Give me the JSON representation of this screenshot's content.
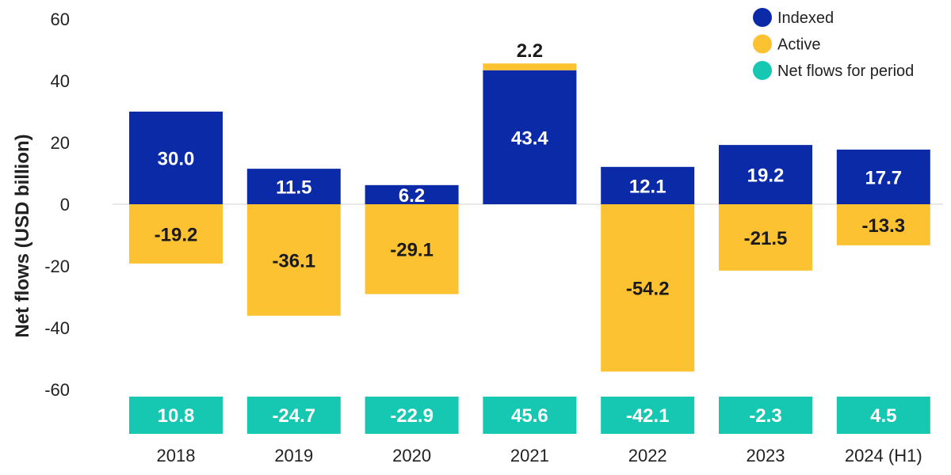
{
  "chart_data": {
    "type": "bar",
    "stacked": true,
    "categories": [
      "2018",
      "2019",
      "2020",
      "2021",
      "2022",
      "2023",
      "2024 (H1)"
    ],
    "series": [
      {
        "name": "Indexed",
        "values": [
          30.0,
          11.5,
          6.2,
          43.4,
          12.1,
          19.2,
          17.7
        ],
        "color": "#0a2aa8",
        "label_color": "#ffffff"
      },
      {
        "name": "Active",
        "values": [
          -19.2,
          -36.1,
          -29.1,
          2.2,
          -54.2,
          -21.5,
          -13.3
        ],
        "color": "#fdc232",
        "label_color": "#1a1a1a"
      }
    ],
    "net_flows": {
      "name": "Net flows for period",
      "values": [
        10.8,
        -24.7,
        -22.9,
        45.6,
        -42.1,
        -2.3,
        4.5
      ],
      "color": "#16c7b1",
      "label_color": "#ffffff"
    },
    "ylabel": "Net flows (USD billion)",
    "xlabel": "",
    "title": "",
    "ylim": [
      -60,
      60
    ],
    "yticks": [
      60,
      40,
      20,
      0,
      -20,
      -40,
      -60
    ],
    "grid": false,
    "legend_position": "top-right"
  }
}
